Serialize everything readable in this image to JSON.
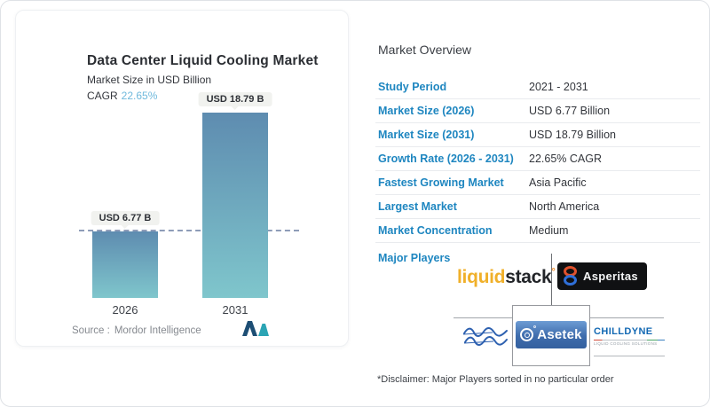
{
  "chart_card": {
    "title": "Data Center Liquid Cooling Market",
    "subtitle": "Market Size in USD Billion",
    "cagr_label": "CAGR",
    "cagr_value": "22.65%",
    "source_label": "Source :",
    "source_value": "Mordor Intelligence",
    "brand_icon": "mordor-intelligence-logo"
  },
  "chart_data": {
    "type": "bar",
    "categories": [
      "2026",
      "2031"
    ],
    "values": [
      6.77,
      18.79
    ],
    "bar_labels": [
      "USD 6.77 B",
      "USD 18.79 B"
    ],
    "title": "Data Center Liquid Cooling Market",
    "ylabel": "Market Size in USD Billion",
    "ylim": [
      0,
      20
    ],
    "grid": false,
    "legend": "none",
    "annotations": {
      "dashed_reference_line_at_value": 6.77
    },
    "bar_gradient_top": "#5e8cb0",
    "bar_gradient_bottom": "#7fc6cc",
    "dashed_line_color": "#8e9cb8"
  },
  "overview": {
    "title": "Market Overview",
    "rows": [
      {
        "label": "Study Period",
        "value": "2021 - 2031"
      },
      {
        "label": "Market Size (2026)",
        "value": "USD 6.77 Billion"
      },
      {
        "label": "Market Size (2031)",
        "value": "USD 18.79 Billion"
      },
      {
        "label": "Growth Rate (2026 - 2031)",
        "value": "22.65% CAGR"
      },
      {
        "label": "Fastest Growing Market",
        "value": "Asia Pacific"
      },
      {
        "label": "Largest Market",
        "value": "North America"
      },
      {
        "label": "Market Concentration",
        "value": "Medium"
      }
    ],
    "major_players_label": "Major Players",
    "players": {
      "liquidstack": {
        "part1": "liquid",
        "part2": "stack",
        "mark": "°",
        "colors": {
          "part1": "#f0b02a",
          "part2": "#222428"
        }
      },
      "asperitas": {
        "name": "Asperitas",
        "bg": "#101113",
        "ring_top": "#e0512c",
        "ring_bottom": "#2f6fd8"
      },
      "alfa_laval": {
        "name": "Alfa Laval",
        "color": "#2e61b0"
      },
      "asetek": {
        "name": "Asetek",
        "bg": "#3e6cac"
      },
      "chilldyne": {
        "name": "CHILLDYNE",
        "tagline": "LIQUID COOLING SOLUTIONS",
        "color": "#1268b3"
      }
    },
    "disclaimer": "*Disclaimer: Major Players sorted in no particular order",
    "label_color": "#1e86c0"
  }
}
